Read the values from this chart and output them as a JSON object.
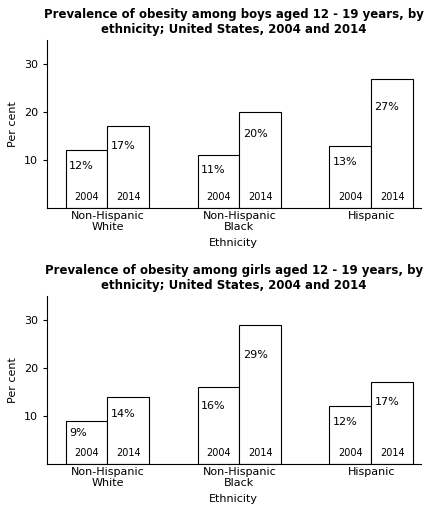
{
  "boys": {
    "title": "Prevalence of obesity among boys aged 12 - 19 years, by\nethnicity; United States, 2004 and 2014",
    "categories": [
      "Non-Hispanic\nWhite",
      "Non-Hispanic\nBlack",
      "Hispanic"
    ],
    "values_2004": [
      12,
      11,
      13
    ],
    "values_2014": [
      17,
      20,
      27
    ],
    "labels_2004": [
      "12%",
      "11%",
      "13%"
    ],
    "labels_2014": [
      "17%",
      "20%",
      "27%"
    ]
  },
  "girls": {
    "title": "Prevalence of obesity among girls aged 12 - 19 years, by\nethnicity; United States, 2004 and 2014",
    "categories": [
      "Non-Hispanic\nWhite",
      "Non-Hispanic\nBlack",
      "Hispanic"
    ],
    "values_2004": [
      9,
      16,
      12
    ],
    "values_2014": [
      14,
      29,
      17
    ],
    "labels_2004": [
      "9%",
      "16%",
      "12%"
    ],
    "labels_2014": [
      "14%",
      "29%",
      "17%"
    ]
  },
  "ylabel": "Per cent",
  "xlabel": "Ethnicity",
  "ylim": [
    0,
    35
  ],
  "yticks": [
    10,
    20,
    30
  ],
  "bar_width": 0.38,
  "bar_color": "white",
  "bar_edgecolor": "black",
  "year_labels": [
    "2004",
    "2014"
  ],
  "background_color": "white",
  "title_fontsize": 8.5,
  "label_fontsize": 8,
  "tick_fontsize": 8,
  "year_label_fontsize": 7,
  "pct_label_fontsize": 8
}
